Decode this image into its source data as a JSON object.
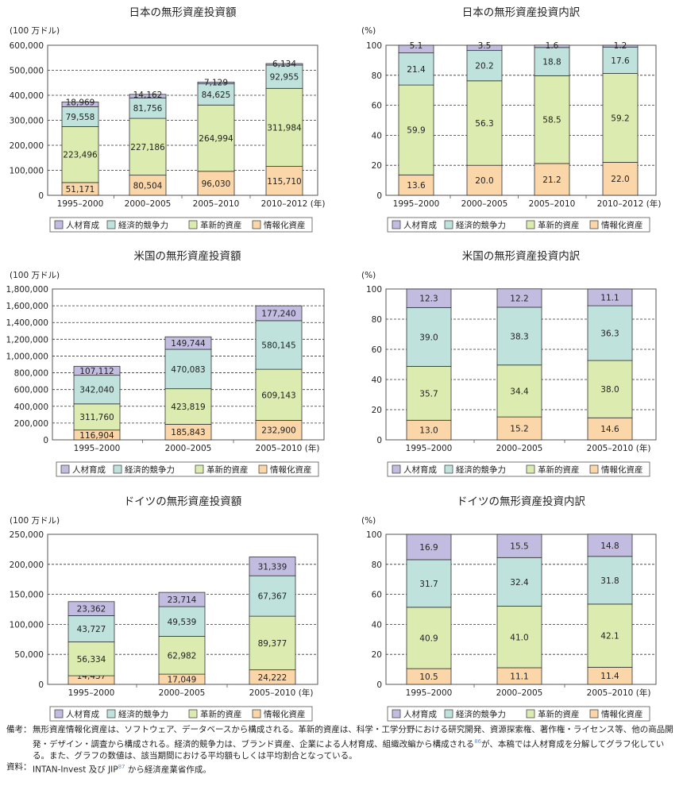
{
  "colors": {
    "info": "#fbd6a8",
    "innov": "#dcebaf",
    "econ": "#bfe3dc",
    "human": "#c2bde0"
  },
  "legend": [
    "人材育成",
    "経済的競争力",
    "革新的資産",
    "情報化資産"
  ],
  "chart_data": [
    {
      "type": "bar",
      "stacked": true,
      "title": "日本の無形資産投資額",
      "unit_label": "(100 万ドル)",
      "categories": [
        "1995–2000",
        "2000–2005",
        "2005–2010",
        "2010–2012"
      ],
      "axis_suffix": "(年)",
      "ylim": [
        0,
        600000
      ],
      "ticks": [
        "0",
        "100,000",
        "200,000",
        "300,000",
        "400,000",
        "500,000",
        "600,000"
      ],
      "ticks_values": [
        0,
        100000,
        200000,
        300000,
        400000,
        500000,
        600000
      ],
      "series": [
        {
          "name": "情報化資産",
          "values": [
            51171,
            80504,
            96030,
            115710
          ],
          "labels": [
            "51,171",
            "80,504",
            "96,030",
            "115,710"
          ]
        },
        {
          "name": "革新的資産",
          "values": [
            223496,
            227186,
            264994,
            311984
          ],
          "labels": [
            "223,496",
            "227,186",
            "264,994",
            "311,984"
          ]
        },
        {
          "name": "経済的競争力",
          "values": [
            79558,
            81756,
            84625,
            92955
          ],
          "labels": [
            "79,558",
            "81,756",
            "84,625",
            "92,955"
          ]
        },
        {
          "name": "人材育成",
          "values": [
            18969,
            14162,
            7129,
            6134
          ],
          "labels": [
            "18,969",
            "14,162",
            "7,129",
            "6,134"
          ]
        }
      ]
    },
    {
      "type": "bar",
      "stacked": true,
      "title": "日本の無形資産投資内訳",
      "unit_label": "(%)",
      "categories": [
        "1995–2000",
        "2000–2005",
        "2005–2010",
        "2010–2012"
      ],
      "axis_suffix": "(年)",
      "ylim": [
        0,
        100
      ],
      "ticks": [
        "0",
        "20",
        "40",
        "60",
        "80",
        "100"
      ],
      "ticks_values": [
        0,
        20,
        40,
        60,
        80,
        100
      ],
      "series": [
        {
          "name": "情報化資産",
          "values": [
            13.6,
            20.0,
            21.2,
            22.0
          ],
          "labels": [
            "13.6",
            "20.0",
            "21.2",
            "22.0"
          ]
        },
        {
          "name": "革新的資産",
          "values": [
            59.9,
            56.3,
            58.5,
            59.2
          ],
          "labels": [
            "59.9",
            "56.3",
            "58.5",
            "59.2"
          ]
        },
        {
          "name": "経済的競争力",
          "values": [
            21.4,
            20.2,
            18.8,
            17.6
          ],
          "labels": [
            "21.4",
            "20.2",
            "18.8",
            "17.6"
          ]
        },
        {
          "name": "人材育成",
          "values": [
            5.1,
            3.5,
            1.6,
            1.2
          ],
          "labels": [
            "5.1",
            "3.5",
            "1.6",
            "1.2"
          ]
        }
      ]
    },
    {
      "type": "bar",
      "stacked": true,
      "title": "米国の無形資産投資額",
      "unit_label": "(100 万ドル)",
      "categories": [
        "1995–2000",
        "2000–2005",
        "2005–2010"
      ],
      "axis_suffix": "(年)",
      "ylim": [
        0,
        1800000
      ],
      "ticks": [
        "0",
        "200,000",
        "400,000",
        "600,000",
        "800,000",
        "1,000,000",
        "1,200,000",
        "1,400,000",
        "1,600,000",
        "1,800,000"
      ],
      "ticks_values": [
        0,
        200000,
        400000,
        600000,
        800000,
        1000000,
        1200000,
        1400000,
        1600000,
        1800000
      ],
      "series": [
        {
          "name": "情報化資産",
          "values": [
            116904,
            185843,
            232900
          ],
          "labels": [
            "116,904",
            "185,843",
            "232,900"
          ]
        },
        {
          "name": "革新的資産",
          "values": [
            311760,
            423819,
            609143
          ],
          "labels": [
            "311,760",
            "423,819",
            "609,143"
          ]
        },
        {
          "name": "経済的競争力",
          "values": [
            342040,
            470083,
            580145
          ],
          "labels": [
            "342,040",
            "470,083",
            "580,145"
          ]
        },
        {
          "name": "人材育成",
          "values": [
            107112,
            149744,
            177240
          ],
          "labels": [
            "107,112",
            "149,744",
            "177,240"
          ]
        }
      ]
    },
    {
      "type": "bar",
      "stacked": true,
      "title": "米国の無形資産投資内訳",
      "unit_label": "(%)",
      "categories": [
        "1995–2000",
        "2000–2005",
        "2005–2010"
      ],
      "axis_suffix": "(年)",
      "ylim": [
        0,
        100
      ],
      "ticks": [
        "0",
        "20",
        "40",
        "60",
        "80",
        "100"
      ],
      "ticks_values": [
        0,
        20,
        40,
        60,
        80,
        100
      ],
      "series": [
        {
          "name": "情報化資産",
          "values": [
            13.0,
            15.2,
            14.6
          ],
          "labels": [
            "13.0",
            "15.2",
            "14.6"
          ]
        },
        {
          "name": "革新的資産",
          "values": [
            35.7,
            34.4,
            38.0
          ],
          "labels": [
            "35.7",
            "34.4",
            "38.0"
          ]
        },
        {
          "name": "経済的競争力",
          "values": [
            39.0,
            38.3,
            36.3
          ],
          "labels": [
            "39.0",
            "38.3",
            "36.3"
          ]
        },
        {
          "name": "人材育成",
          "values": [
            12.3,
            12.2,
            11.1
          ],
          "labels": [
            "12.3",
            "12.2",
            "11.1"
          ]
        }
      ]
    },
    {
      "type": "bar",
      "stacked": true,
      "title": "ドイツの無形資産投資額",
      "unit_label": "(100 万ドル)",
      "categories": [
        "1995–2000",
        "2000–2005",
        "2005–2010"
      ],
      "axis_suffix": "(年)",
      "ylim": [
        0,
        250000
      ],
      "ticks": [
        "0",
        "50,000",
        "100,000",
        "150,000",
        "200,000",
        "250,000"
      ],
      "ticks_values": [
        0,
        50000,
        100000,
        150000,
        200000,
        250000
      ],
      "series": [
        {
          "name": "情報化資産",
          "values": [
            14437,
            17049,
            24222
          ],
          "labels": [
            "14,437",
            "17,049",
            "24,222"
          ]
        },
        {
          "name": "革新的資産",
          "values": [
            56334,
            62982,
            89377
          ],
          "labels": [
            "56,334",
            "62,982",
            "89,377"
          ]
        },
        {
          "name": "経済的競争力",
          "values": [
            43727,
            49539,
            67367
          ],
          "labels": [
            "43,727",
            "49,539",
            "67,367"
          ]
        },
        {
          "name": "人材育成",
          "values": [
            23362,
            23714,
            31339
          ],
          "labels": [
            "23,362",
            "23,714",
            "31,339"
          ]
        }
      ]
    },
    {
      "type": "bar",
      "stacked": true,
      "title": "ドイツの無形資産投資内訳",
      "unit_label": "(%)",
      "categories": [
        "1995–2000",
        "2000–2005",
        "2005–2010"
      ],
      "axis_suffix": "(年)",
      "ylim": [
        0,
        100
      ],
      "ticks": [
        "0",
        "20",
        "40",
        "60",
        "80",
        "100"
      ],
      "ticks_values": [
        0,
        20,
        40,
        60,
        80,
        100
      ],
      "series": [
        {
          "name": "情報化資産",
          "values": [
            10.5,
            11.1,
            11.4
          ],
          "labels": [
            "10.5",
            "11.1",
            "11.4"
          ]
        },
        {
          "name": "革新的資産",
          "values": [
            40.9,
            41.0,
            42.1
          ],
          "labels": [
            "40.9",
            "41.0",
            "42.1"
          ]
        },
        {
          "name": "経済的競争力",
          "values": [
            31.7,
            32.4,
            31.8
          ],
          "labels": [
            "31.7",
            "32.4",
            "31.8"
          ]
        },
        {
          "name": "人材育成",
          "values": [
            16.9,
            15.5,
            14.8
          ],
          "labels": [
            "16.9",
            "15.5",
            "14.8"
          ]
        }
      ]
    }
  ],
  "notes": {
    "biko_label": "備考：",
    "biko_text_1": "無形資産情報化資産は、ソフトウェア、データベースから構成される。革新的資産は、科学・工学分野における研究開発、資源探索権、著作権・ライセンス等、他の商品開発・デザイン・調査から構成される。経済的競争力は、ブランド資産、企業による人材育成、組織改編から構成される",
    "biko_ref_1": "86",
    "biko_text_2": "が、本稿では人材育成を分解してグラフ化している。また、グラフの数値は、該当期間における平均額もしくは平均割合となっている。",
    "source_label": "資料：",
    "source_text_1": "INTAN-Invest 及び JIP",
    "source_ref": "87",
    "source_text_2": " から経済産業省作成。"
  }
}
